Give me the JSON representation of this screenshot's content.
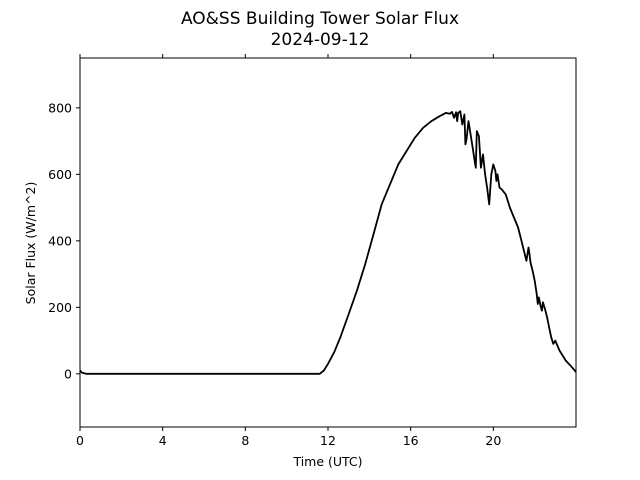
{
  "chart_data": {
    "type": "line",
    "title": "AO&SS Building Tower Solar Flux",
    "subtitle": "2024-09-12",
    "xlabel": "Time (UTC)",
    "ylabel": "Solar Flux (W/m^2)",
    "xlim": [
      0,
      24
    ],
    "ylim": [
      -160,
      950
    ],
    "xticks": [
      0,
      4,
      8,
      12,
      16,
      20
    ],
    "xtick_labels": [
      "0",
      "4",
      "8",
      "12",
      "16",
      "20"
    ],
    "yticks": [
      0,
      200,
      400,
      600,
      800
    ],
    "ytick_labels": [
      "0",
      "200",
      "400",
      "600",
      "800"
    ],
    "grid": false,
    "legend": "none",
    "series": [
      {
        "color": "#000000",
        "x": [
          0,
          0.1,
          0.3,
          2,
          4,
          6,
          8,
          10,
          11.6,
          11.8,
          12.0,
          12.3,
          12.6,
          13.0,
          13.4,
          13.8,
          14.2,
          14.6,
          15.0,
          15.4,
          15.8,
          16.2,
          16.6,
          17.0,
          17.4,
          17.7,
          17.9,
          18.0,
          18.1,
          18.2,
          18.25,
          18.3,
          18.4,
          18.5,
          18.6,
          18.65,
          18.7,
          18.8,
          18.9,
          19.0,
          19.1,
          19.15,
          19.2,
          19.3,
          19.4,
          19.5,
          19.6,
          19.7,
          19.8,
          19.9,
          20.0,
          20.1,
          20.15,
          20.2,
          20.3,
          20.4,
          20.6,
          20.8,
          21.0,
          21.2,
          21.4,
          21.6,
          21.7,
          21.75,
          21.8,
          21.9,
          22.0,
          22.1,
          22.15,
          22.2,
          22.3,
          22.35,
          22.4,
          22.5,
          22.6,
          22.7,
          22.8,
          22.9,
          23.0,
          23.2,
          23.5,
          23.8,
          24.0
        ],
        "y": [
          10,
          3,
          0,
          0,
          0,
          0,
          0,
          0,
          0,
          10,
          30,
          65,
          110,
          180,
          250,
          330,
          420,
          510,
          570,
          630,
          670,
          710,
          740,
          760,
          775,
          785,
          782,
          788,
          770,
          787,
          760,
          785,
          790,
          750,
          780,
          690,
          705,
          760,
          720,
          680,
          640,
          620,
          730,
          715,
          620,
          660,
          600,
          560,
          510,
          600,
          630,
          610,
          580,
          600,
          560,
          555,
          540,
          500,
          470,
          440,
          390,
          340,
          380,
          360,
          335,
          310,
          280,
          240,
          210,
          230,
          200,
          190,
          215,
          195,
          170,
          140,
          110,
          90,
          100,
          70,
          40,
          20,
          5
        ]
      }
    ]
  }
}
